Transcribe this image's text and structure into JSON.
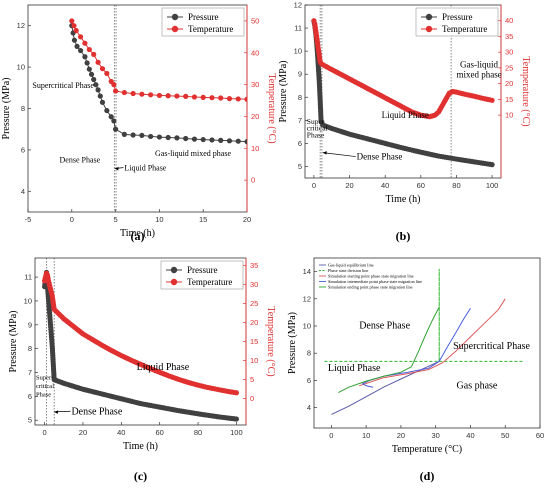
{
  "chart_data": [
    {
      "id": "a",
      "type": "line",
      "sublabel": "(a)",
      "xlabel": "Time (h)",
      "ylabel": "Pressure (MPa)",
      "ylabel_right": "Temperature (°C)",
      "xlim": [
        -5,
        20
      ],
      "ylim": [
        3,
        13
      ],
      "ylim_right": [
        -10,
        55
      ],
      "xticks": [
        -5,
        0,
        5,
        10,
        15,
        20
      ],
      "yticks": [
        4,
        6,
        8,
        10,
        12
      ],
      "yticks_right": [
        0,
        10,
        20,
        30,
        40,
        50
      ],
      "vlines": [
        4.85,
        5.05
      ],
      "legend": {
        "position": "top-right",
        "entries": [
          "Pressure",
          "Temperature"
        ]
      },
      "series": [
        {
          "name": "Pressure",
          "axis": "left",
          "color": "#404040",
          "x": [
            0,
            0.3,
            0.6,
            1,
            1.5,
            2,
            2.5,
            3,
            3.5,
            4,
            4.5,
            4.8,
            5,
            6,
            7,
            8,
            9,
            10,
            11,
            12,
            13,
            14,
            15,
            16,
            17,
            18,
            19,
            20
          ],
          "y": [
            12.0,
            11.3,
            11.0,
            10.8,
            10.5,
            9.9,
            9.4,
            8.9,
            8.3,
            7.9,
            7.6,
            7.4,
            7.0,
            6.75,
            6.72,
            6.7,
            6.65,
            6.62,
            6.6,
            6.58,
            6.55,
            6.52,
            6.5,
            6.48,
            6.46,
            6.44,
            6.42,
            6.4
          ]
        },
        {
          "name": "Temperature",
          "axis": "right",
          "color": "#e03030",
          "x": [
            0,
            0.5,
            1,
            1.5,
            2,
            2.5,
            3,
            3.5,
            4,
            4.5,
            4.8,
            5,
            6,
            7,
            8,
            9,
            10,
            11,
            12,
            13,
            14,
            15,
            16,
            17,
            18,
            19,
            20
          ],
          "y": [
            50,
            47,
            45,
            43,
            41,
            39.5,
            37,
            35,
            33.5,
            31,
            30,
            28,
            27.5,
            27.2,
            27,
            26.8,
            26.6,
            26.5,
            26.4,
            26.3,
            26.1,
            26,
            25.9,
            25.8,
            25.6,
            25.5,
            25.4
          ]
        }
      ],
      "annotations": [
        {
          "text": "Supercritical Phase",
          "x": -4.5,
          "y": 9.0,
          "size": 8
        },
        {
          "text": "Dense Phase",
          "x": -1.4,
          "y": 5.4,
          "size": 8
        },
        {
          "text": "Liquid Phase",
          "x": 6.0,
          "y": 5.0,
          "size": 8,
          "arrow_to": [
            4.9,
            5.1
          ]
        },
        {
          "text": "Gas-liquid mixed phase",
          "x": 9.5,
          "y": 5.7,
          "size": 8
        }
      ]
    },
    {
      "id": "b",
      "type": "line",
      "sublabel": "(b)",
      "xlabel": "Time (h)",
      "ylabel": "Pressure (MPa)",
      "ylabel_right": "Temperature (°C)",
      "xlim": [
        -5,
        105
      ],
      "ylim": [
        4.5,
        12
      ],
      "ylim_right": [
        -10,
        45
      ],
      "xticks": [
        0,
        20,
        40,
        60,
        80,
        100
      ],
      "yticks": [
        5,
        6,
        7,
        8,
        9,
        10,
        11,
        12
      ],
      "yticks_right": [
        10,
        15,
        20,
        25,
        30,
        35,
        40
      ],
      "vlines": [
        3.5,
        4.5,
        77
      ],
      "legend": {
        "position": "top-right",
        "entries": [
          "Pressure",
          "Temperature"
        ]
      },
      "series": [
        {
          "name": "Pressure",
          "axis": "left",
          "color": "#404040",
          "x": [
            0,
            0.5,
            1,
            1.5,
            2,
            2.5,
            3,
            3.5,
            4,
            5,
            10,
            20,
            30,
            40,
            50,
            60,
            70,
            80,
            90,
            100
          ],
          "y": [
            11.3,
            11.1,
            10.8,
            10.4,
            9.9,
            9.3,
            8.7,
            7.9,
            7.0,
            6.8,
            6.65,
            6.4,
            6.2,
            6.0,
            5.8,
            5.62,
            5.45,
            5.32,
            5.2,
            5.08
          ]
        },
        {
          "name": "Temperature",
          "axis": "right",
          "color": "#e03030",
          "x": [
            0,
            0.5,
            1,
            1.5,
            2,
            2.5,
            3,
            3.5,
            4,
            5,
            10,
            15,
            20,
            25,
            30,
            35,
            40,
            45,
            50,
            55,
            60,
            65,
            68,
            70,
            72,
            74,
            76,
            78,
            80,
            85,
            90,
            95,
            100
          ],
          "y": [
            40,
            39,
            37,
            35,
            33,
            31,
            29,
            27,
            26.5,
            26,
            24.5,
            23,
            21.5,
            20,
            18.5,
            17,
            15.5,
            14,
            12.5,
            11,
            10,
            9.5,
            10,
            11,
            13,
            15,
            17,
            17.5,
            17.3,
            16.6,
            16,
            15.3,
            14.7
          ]
        }
      ],
      "annotations": [
        {
          "text": "Super",
          "x": -4.0,
          "y": 6.85,
          "size": 7.5
        },
        {
          "text": "critical",
          "x": -4.0,
          "y": 6.55,
          "size": 7.5
        },
        {
          "text": "Phase",
          "x": -4.0,
          "y": 6.25,
          "size": 7.5
        },
        {
          "text": "Liquid Phase",
          "x": 38,
          "y": 7.1,
          "size": 9
        },
        {
          "text": "Dense Phase",
          "x": 24,
          "y": 5.3,
          "size": 9,
          "arrow_to": [
            5,
            5.6
          ]
        },
        {
          "text": "Gas-liquid",
          "x": 82,
          "y": 9.3,
          "size": 9
        },
        {
          "text": "mixed phase",
          "x": 80,
          "y": 8.85,
          "size": 9
        }
      ]
    },
    {
      "id": "c",
      "type": "line",
      "sublabel": "(c)",
      "xlabel": "Time (h)",
      "ylabel": "Pressure (MPa)",
      "ylabel_right": "Temperature (°C)",
      "xlim": [
        -5,
        105
      ],
      "ylim": [
        4.8,
        11.8
      ],
      "ylim_right": [
        -7,
        37
      ],
      "xticks": [
        0,
        20,
        40,
        60,
        80,
        100
      ],
      "yticks": [
        5,
        6,
        7,
        8,
        9,
        10,
        11
      ],
      "yticks_right": [
        0,
        5,
        10,
        15,
        20,
        25,
        30,
        35
      ],
      "vlines": [
        1,
        5
      ],
      "legend": {
        "position": "top-right",
        "entries": [
          "Pressure",
          "Temperature"
        ]
      },
      "series": [
        {
          "name": "Pressure",
          "axis": "left",
          "color": "#404040",
          "x": [
            0,
            0.5,
            1,
            1.5,
            2,
            2.5,
            3,
            3.5,
            4,
            5,
            10,
            20,
            30,
            40,
            50,
            60,
            70,
            80,
            90,
            100
          ],
          "y": [
            10.6,
            10.9,
            11.2,
            10.6,
            10.1,
            9.6,
            9.1,
            8.6,
            8.1,
            6.7,
            6.55,
            6.3,
            6.1,
            5.9,
            5.7,
            5.55,
            5.4,
            5.27,
            5.15,
            5.05
          ]
        },
        {
          "name": "Temperature",
          "axis": "right",
          "color": "#e03030",
          "x": [
            0,
            0.5,
            1,
            1.5,
            2,
            2.5,
            3,
            4,
            5,
            10,
            15,
            20,
            25,
            30,
            35,
            40,
            45,
            50,
            55,
            60,
            65,
            70,
            75,
            80,
            85,
            90,
            95,
            100
          ],
          "y": [
            31,
            32,
            33,
            32.5,
            31,
            30,
            29,
            27,
            23.5,
            21,
            19,
            17,
            15.5,
            14,
            12.6,
            11.3,
            10.1,
            9,
            7.9,
            6.9,
            5.9,
            5,
            4.2,
            3.5,
            2.9,
            2.4,
            1.9,
            1.5
          ]
        }
      ],
      "annotations": [
        {
          "text": "Super-",
          "x": -4.5,
          "y": 6.7,
          "size": 6.5
        },
        {
          "text": "critical",
          "x": -4.5,
          "y": 6.35,
          "size": 6.5
        },
        {
          "text": "Phase",
          "x": -4.5,
          "y": 6.0,
          "size": 6.5
        },
        {
          "text": "Liquid Phase",
          "x": 48,
          "y": 7.1,
          "size": 10
        },
        {
          "text": "Dense Phase",
          "x": 14,
          "y": 5.25,
          "size": 10,
          "arrow_to": [
            5,
            5.35
          ]
        }
      ]
    },
    {
      "id": "d",
      "type": "line",
      "sublabel": "(d)",
      "xlabel": "Temperature (°C)",
      "ylabel": "Pressure (MPa)",
      "xlim": [
        -5,
        60
      ],
      "ylim": [
        2.5,
        15
      ],
      "xticks": [
        0,
        10,
        20,
        30,
        40,
        50,
        60
      ],
      "yticks": [
        4,
        6,
        8,
        10,
        12,
        14
      ],
      "legend": {
        "position": "top-left",
        "entries": [
          "Gas-liquid equilibrium line",
          "Phase state division line",
          "Simulation starting point phase state migration line",
          "Simulation intermediate point phase state migration line",
          "Simulation ending point phase state migration line"
        ]
      },
      "series": [
        {
          "name": "Gas-liquid equilibrium line",
          "color": "#5a5aa8",
          "x": [
            0,
            5,
            10,
            15,
            20,
            25,
            31
          ],
          "y": [
            3.5,
            4.1,
            4.8,
            5.5,
            6.1,
            6.7,
            7.4
          ]
        },
        {
          "name": "Phase state division line",
          "color": "#2db52d",
          "dashed": true,
          "x": [
            -2,
            31,
            31,
            31,
            55
          ],
          "y": [
            7.4,
            7.4,
            14.2,
            7.4,
            7.4
          ]
        },
        {
          "name": "Simulation starting point phase state migration line",
          "color": "#e05a5a",
          "x": [
            8,
            15,
            22,
            28,
            32,
            36,
            40,
            44,
            48,
            50
          ],
          "y": [
            5.6,
            6.2,
            6.5,
            6.8,
            7.3,
            8.2,
            9.2,
            10.2,
            11.2,
            12.0
          ]
        },
        {
          "name": "Simulation intermediate point phase state migration line",
          "color": "#4a60e0",
          "x": [
            12,
            10,
            9,
            11,
            15,
            22,
            28,
            31,
            33,
            36,
            38,
            40
          ],
          "y": [
            5.5,
            5.6,
            5.75,
            6.0,
            6.3,
            6.6,
            6.9,
            7.4,
            8.3,
            9.6,
            10.5,
            11.3
          ]
        },
        {
          "name": "Simulation ending point phase state migration line",
          "color": "#30a030",
          "x": [
            2,
            5,
            10,
            15,
            20,
            23,
            25,
            27,
            29,
            31
          ],
          "y": [
            5.1,
            5.5,
            5.95,
            6.3,
            6.6,
            7.0,
            8.1,
            9.3,
            10.4,
            11.4
          ]
        }
      ],
      "annotations": [
        {
          "text": "Dense Phase",
          "x": 8,
          "y": 9.8,
          "size": 10
        },
        {
          "text": "Supercritical Phase",
          "x": 35,
          "y": 8.3,
          "size": 10
        },
        {
          "text": "Liquid Phase",
          "x": -1,
          "y": 6.7,
          "size": 10
        },
        {
          "text": "Gas phase",
          "x": 36,
          "y": 5.4,
          "size": 10
        }
      ]
    }
  ]
}
